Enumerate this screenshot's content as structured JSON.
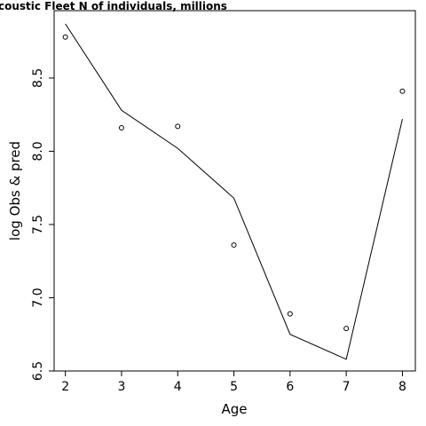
{
  "chart_data": {
    "type": "line",
    "title": "coustic Fleet   N of individuals, millions",
    "xlabel": "Age",
    "ylabel": "log Obs & pred",
    "x": [
      2,
      3,
      4,
      5,
      6,
      7,
      8
    ],
    "xticks": [
      "2",
      "3",
      "4",
      "5",
      "6",
      "7",
      "8"
    ],
    "yticks": [
      "6.5",
      "7.0",
      "7.5",
      "8.0",
      "8.5"
    ],
    "xlim": [
      1.8,
      8.23
    ],
    "ylim": [
      6.5,
      8.96
    ],
    "series": [
      {
        "style": "points",
        "values": [
          8.78,
          8.16,
          8.17,
          7.36,
          6.89,
          6.79,
          8.41
        ]
      },
      {
        "style": "line",
        "values": [
          8.87,
          8.28,
          8.02,
          7.68,
          6.75,
          6.58,
          8.22
        ]
      }
    ],
    "grid": false,
    "legend": "none"
  }
}
